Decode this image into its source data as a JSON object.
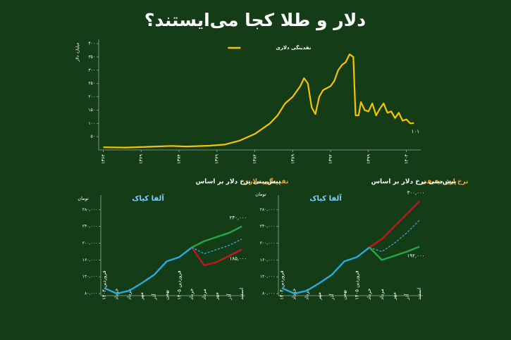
{
  "title": "دلار و طلا کجا می‌ایستند؟",
  "chart_data": [
    {
      "type": "line",
      "y_label": "میلیارد دلار",
      "legend": "top",
      "x": [
        1364,
        1367,
        1370,
        1373,
        1375,
        1378,
        1380,
        1382,
        1384,
        1385,
        1386,
        1387,
        1388,
        1389,
        1390,
        1390.5,
        1391,
        1391.5,
        1392,
        1392.5,
        1393,
        1394,
        1394.5,
        1395,
        1395.5,
        1396,
        1396.5,
        1397,
        1397.3,
        1397.7,
        1398,
        1398.5,
        1399,
        1399.5,
        1400,
        1400.5,
        1401,
        1401.5,
        1402,
        1402.5,
        1403,
        1403.5,
        1404,
        1404.5,
        1405
      ],
      "xlim": [
        1363.4,
        1405.9
      ],
      "xticks": [
        {
          "value": 1364,
          "label": "۱۳۶۴"
        },
        {
          "value": 1369,
          "label": "۱۳۶۹"
        },
        {
          "value": 1374,
          "label": "۱۳۷۴"
        },
        {
          "value": 1379,
          "label": "۱۳۷۹"
        },
        {
          "value": 1384,
          "label": "۱۳۸۴"
        },
        {
          "value": 1389,
          "label": "۱۳۸۹"
        },
        {
          "value": 1394,
          "label": "۱۳۹۴"
        },
        {
          "value": 1399,
          "label": "۱۳۹۹"
        },
        {
          "value": 1404,
          "label": "۱۴۰۴"
        }
      ],
      "ylim": [
        0,
        400
      ],
      "yticks": [
        {
          "value": 50,
          "label": "۵۰"
        },
        {
          "value": 100,
          "label": "۱۰۰"
        },
        {
          "value": 150,
          "label": "۱۵۰"
        },
        {
          "value": 200,
          "label": "۲۰۰"
        },
        {
          "value": 250,
          "label": "۲۵۰"
        },
        {
          "value": 300,
          "label": "۳۰۰"
        },
        {
          "value": 350,
          "label": "۳۵۰"
        },
        {
          "value": 400,
          "label": "۴۰۰"
        }
      ],
      "series": [
        {
          "name": "نقدینگی دلاری",
          "color": "#f5c400",
          "values": [
            10,
            9,
            12,
            15,
            13,
            16,
            20,
            35,
            60,
            80,
            100,
            130,
            175,
            200,
            240,
            270,
            250,
            160,
            135,
            200,
            225,
            240,
            260,
            300,
            320,
            330,
            360,
            350,
            130,
            130,
            180,
            150,
            145,
            175,
            130,
            155,
            175,
            140,
            145,
            120,
            140,
            110,
            115,
            100,
            101
          ],
          "value_labels": [
            null,
            null,
            null,
            null,
            null,
            null,
            null,
            null,
            null,
            null,
            null,
            null,
            null,
            null,
            null,
            null,
            null,
            null,
            null,
            null,
            null,
            null,
            null,
            null,
            null,
            null,
            null,
            null,
            null,
            null,
            null,
            null,
            null,
            null,
            null,
            null,
            null,
            null,
            null,
            null,
            null,
            null,
            null,
            null,
            "۱۰۱"
          ]
        }
      ]
    },
    {
      "type": "line",
      "title": "پیش‌بینی نرخ دلار بر اساس",
      "title_highlight": "نقدینگی دلاری",
      "unit_label": "تومان",
      "logo": "آلفا کیاک",
      "categories": [
        "فروردین ۱۴۰۴",
        "خرداد",
        "مرداد",
        "مهر",
        "آذر",
        "بهمن",
        "فروردین ۱۴۰۵",
        "خرداد",
        "مرداد",
        "مهر",
        "آذر",
        "اسفند"
      ],
      "ylim": [
        75000,
        305000
      ],
      "yticks": [
        {
          "value": 80000,
          "label": "۸۰,۰۰۰"
        },
        {
          "value": 120000,
          "label": "۱۲۰,۰۰۰"
        },
        {
          "value": 160000,
          "label": "۱۶۰,۰۰۰"
        },
        {
          "value": 200000,
          "label": "۲۰۰,۰۰۰"
        },
        {
          "value": 240000,
          "label": "۲۴۰,۰۰۰"
        },
        {
          "value": 280000,
          "label": "۲۸۰,۰۰۰"
        }
      ],
      "series": [
        {
          "color": "#2aa9e0",
          "values": [
            93000,
            80000,
            87000,
            105000,
            125000,
            157000,
            167000,
            190000,
            null,
            null,
            null,
            null
          ]
        },
        {
          "color": "#22a84a",
          "values": [
            null,
            null,
            null,
            null,
            null,
            null,
            null,
            190000,
            205000,
            215000,
            225000,
            240000
          ],
          "value_labels": [
            null,
            null,
            null,
            null,
            null,
            null,
            null,
            null,
            null,
            null,
            null,
            "۲۴۰,۰۰۰"
          ]
        },
        {
          "color": "#c4161c",
          "values": [
            null,
            null,
            null,
            null,
            null,
            null,
            null,
            190000,
            147000,
            155000,
            170000,
            185000
          ],
          "value_labels": [
            null,
            null,
            null,
            null,
            null,
            null,
            null,
            null,
            null,
            null,
            null,
            "۱۸۵,۰۰۰"
          ]
        },
        {
          "color": "#3aa7e0",
          "dash": true,
          "values": [
            null,
            null,
            null,
            null,
            null,
            null,
            null,
            190000,
            175000,
            185000,
            195000,
            210000
          ]
        }
      ]
    },
    {
      "type": "line",
      "title": "پیش‌بینی نرخ دلار بر اساس",
      "title_highlight": "نرخ ارز حقیقی",
      "unit_label": "تومان",
      "logo": "آلفا کیاک",
      "categories": [
        "فروردین ۱۴۰۴",
        "خرداد",
        "مرداد",
        "مهر",
        "آذر",
        "بهمن",
        "فروردین ۱۴۰۵",
        "خرداد",
        "مرداد",
        "مهر",
        "آذر",
        "اسفند"
      ],
      "ylim": [
        75000,
        305000
      ],
      "yticks": [
        {
          "value": 80000,
          "label": "۸۰,۰۰۰"
        },
        {
          "value": 120000,
          "label": "۱۲۰,۰۰۰"
        },
        {
          "value": 160000,
          "label": "۱۶۰,۰۰۰"
        },
        {
          "value": 200000,
          "label": "۲۰۰,۰۰۰"
        },
        {
          "value": 240000,
          "label": "۲۴۰,۰۰۰"
        },
        {
          "value": 280000,
          "label": "۲۸۰,۰۰۰"
        }
      ],
      "series": [
        {
          "color": "#2aa9e0",
          "values": [
            93000,
            80000,
            87000,
            105000,
            125000,
            157000,
            167000,
            190000,
            null,
            null,
            null,
            null
          ]
        },
        {
          "color": "#c4161c",
          "values": [
            null,
            null,
            null,
            null,
            null,
            null,
            null,
            190000,
            210000,
            240000,
            270000,
            300000
          ],
          "value_labels": [
            null,
            null,
            null,
            null,
            null,
            null,
            null,
            null,
            null,
            null,
            null,
            "۳۰۰,۰۰۰"
          ]
        },
        {
          "color": "#3aa7e0",
          "dash": true,
          "values": [
            null,
            null,
            null,
            null,
            null,
            null,
            null,
            190000,
            180000,
            200000,
            225000,
            255000
          ]
        },
        {
          "color": "#22a84a",
          "values": [
            null,
            null,
            null,
            null,
            null,
            null,
            null,
            190000,
            160000,
            170000,
            180000,
            192000
          ],
          "value_labels": [
            null,
            null,
            null,
            null,
            null,
            null,
            null,
            null,
            null,
            null,
            null,
            "۱۹۲,۰۰۰"
          ]
        }
      ]
    }
  ]
}
